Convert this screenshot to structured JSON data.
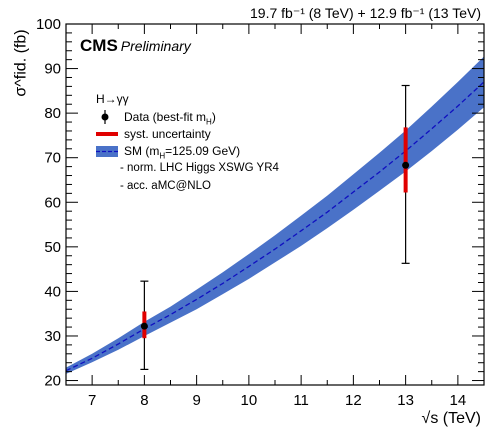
{
  "lumi": "19.7 fb⁻¹ (8 TeV) + 12.9 fb⁻¹ (13 TeV)",
  "cms": "CMS",
  "preliminary": "Preliminary",
  "ylabel": "σ^fid. (fb)",
  "xlabel": "√s (TeV)",
  "legend": {
    "title": "H→γγ",
    "data": "Data (best-fit m",
    "data_sub": "H",
    "data_end": ")",
    "syst": "syst. uncertainty",
    "sm": "SM (m",
    "sm_sub": "H",
    "sm_end": "=125.09 GeV)",
    "norm": "- norm. LHC Higgs XSWG YR4",
    "acc": "- acc. aMC@NLO"
  },
  "colors": {
    "band": "#4a72c8",
    "central": "#1010c0",
    "syst": "#e00000",
    "data": "#000000"
  },
  "chart_data": {
    "type": "scatter",
    "xlim": [
      6.5,
      14.5
    ],
    "ylim": [
      19,
      100
    ],
    "xticks": [
      7,
      8,
      9,
      10,
      11,
      12,
      13,
      14
    ],
    "yticks": [
      20,
      30,
      40,
      50,
      60,
      70,
      80,
      90,
      100
    ],
    "data_points": [
      {
        "x": 8,
        "y": 32.2,
        "stat_low": 22.5,
        "stat_high": 42.3,
        "syst_low": 29.5,
        "syst_high": 35.5
      },
      {
        "x": 13,
        "y": 68.3,
        "stat_low": 46.3,
        "stat_high": 86.2,
        "syst_low": 62.2,
        "syst_high": 76.8
      }
    ],
    "sm_prediction": {
      "x": [
        6.5,
        7,
        7.5,
        8,
        8.5,
        9,
        9.5,
        10,
        10.5,
        11,
        11.5,
        12,
        12.5,
        13,
        13.5,
        14,
        14.5
      ],
      "y": [
        22.2,
        25.0,
        28.2,
        31.6,
        34.8,
        38.2,
        41.8,
        45.6,
        49.5,
        53.6,
        57.8,
        62.3,
        66.8,
        71.5,
        76.5,
        81.6,
        87.0
      ],
      "low": [
        21.5,
        24.1,
        26.9,
        30.0,
        33.0,
        36.0,
        39.4,
        42.8,
        46.5,
        50.2,
        54.2,
        58.3,
        62.6,
        66.9,
        71.5,
        76.3,
        81.3
      ],
      "high": [
        22.9,
        26.0,
        29.5,
        33.2,
        36.6,
        40.4,
        44.3,
        48.4,
        52.6,
        57.0,
        61.5,
        66.3,
        71.1,
        76.1,
        81.5,
        87.0,
        92.7
      ]
    }
  }
}
